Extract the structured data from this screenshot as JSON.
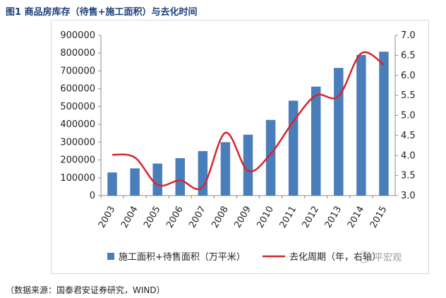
{
  "figure_title": "图1  商品房库存（待售+施工面积）与去化时间",
  "source_note": "（数据来源：国泰君安证券研究，WIND）",
  "watermark": "平宏观",
  "colors": {
    "bar": "#4a7ebb",
    "line": "#d9242b",
    "title": "#1b3f7a"
  },
  "chart_data": {
    "type": "bar",
    "title": "",
    "categories": [
      "2003",
      "2004",
      "2005",
      "2006",
      "2007",
      "2008",
      "2009",
      "2010",
      "2011",
      "2012",
      "2013",
      "2014",
      "2015"
    ],
    "series": [
      {
        "name": "施工面积+待售面积（万平米）",
        "type": "bar",
        "axis": "left",
        "values": [
          130000,
          153000,
          180000,
          210000,
          250000,
          300000,
          342000,
          425000,
          533000,
          612000,
          717000,
          790000,
          808000
        ]
      },
      {
        "name": "去化周期（年，右轴）",
        "type": "line",
        "axis": "right",
        "values": [
          4.02,
          3.95,
          3.27,
          3.38,
          3.22,
          4.57,
          3.62,
          4.04,
          4.85,
          5.5,
          5.48,
          6.55,
          6.27
        ]
      }
    ],
    "yaxis_left": {
      "min": 0,
      "max": 900000,
      "ticks": [
        "0",
        "100000",
        "200000",
        "300000",
        "400000",
        "500000",
        "600000",
        "700000",
        "800000",
        "900000"
      ]
    },
    "yaxis_right": {
      "min": 3.0,
      "max": 7.0,
      "ticks": [
        "3.0",
        "3.5",
        "4.0",
        "4.5",
        "5.0",
        "5.5",
        "6.0",
        "6.5",
        "7.0"
      ]
    },
    "xlabel": "",
    "ylabel": "",
    "grid": false,
    "legend_position": "bottom"
  }
}
